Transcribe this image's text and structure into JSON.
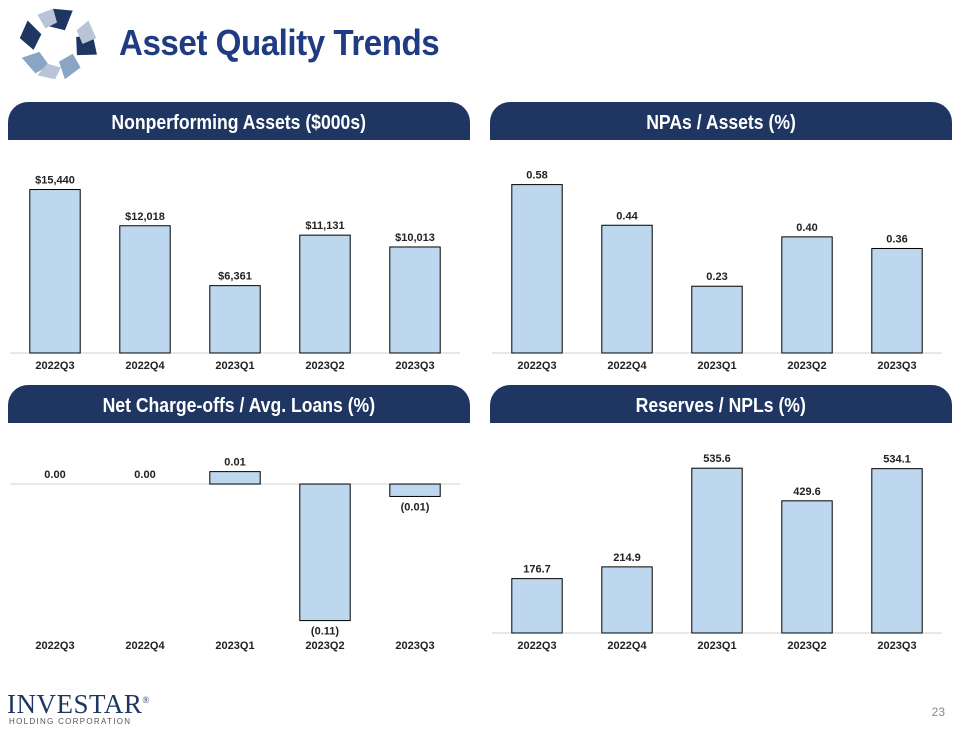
{
  "header": {
    "title": "Asset Quality Trends"
  },
  "colors": {
    "bar_fill": "#bdd7ee",
    "bar_stroke": "#000000",
    "header_bg": "#1f3663",
    "title_color": "#1f3b82"
  },
  "footer": {
    "brand_name": "INVESTAR",
    "brand_mark": "®",
    "brand_sub": "HOLDING CORPORATION",
    "page_number": "23"
  },
  "chart_data": [
    {
      "type": "bar",
      "title": "Nonperforming Assets ($000s)",
      "categories": [
        "2022Q3",
        "2022Q4",
        "2023Q1",
        "2023Q2",
        "2023Q3"
      ],
      "values": [
        15440,
        12018,
        6361,
        11131,
        10013
      ],
      "labels": [
        "$15,440",
        "$12,018",
        "$6,361",
        "$11,131",
        "$10,013"
      ],
      "ylim": [
        0,
        17000
      ],
      "xlabel": "",
      "ylabel": ""
    },
    {
      "type": "bar",
      "title": "NPAs / Assets (%)",
      "categories": [
        "2022Q3",
        "2022Q4",
        "2023Q1",
        "2023Q2",
        "2023Q3"
      ],
      "values": [
        0.58,
        0.44,
        0.23,
        0.4,
        0.36
      ],
      "labels": [
        "0.58",
        "0.44",
        "0.23",
        "0.40",
        "0.36"
      ],
      "ylim": [
        0,
        0.62
      ],
      "xlabel": "",
      "ylabel": ""
    },
    {
      "type": "bar",
      "title": "Net Charge-offs / Avg. Loans (%)",
      "categories": [
        "2022Q3",
        "2022Q4",
        "2023Q1",
        "2023Q2",
        "2023Q3"
      ],
      "values": [
        0.0,
        0.0,
        0.01,
        -0.11,
        -0.01
      ],
      "labels": [
        "0.00",
        "0.00",
        "0.01",
        "(0.11)",
        "(0.01)"
      ],
      "ylim": [
        -0.12,
        0.025
      ],
      "xlabel": "",
      "ylabel": ""
    },
    {
      "type": "bar",
      "title": "Reserves / NPLs (%)",
      "categories": [
        "2022Q3",
        "2022Q4",
        "2023Q1",
        "2023Q2",
        "2023Q3"
      ],
      "values": [
        176.7,
        214.9,
        535.6,
        429.6,
        534.1
      ],
      "labels": [
        "176.7",
        "214.9",
        "535.6",
        "429.6",
        "534.1"
      ],
      "ylim": [
        0,
        585
      ],
      "xlabel": "",
      "ylabel": ""
    }
  ]
}
